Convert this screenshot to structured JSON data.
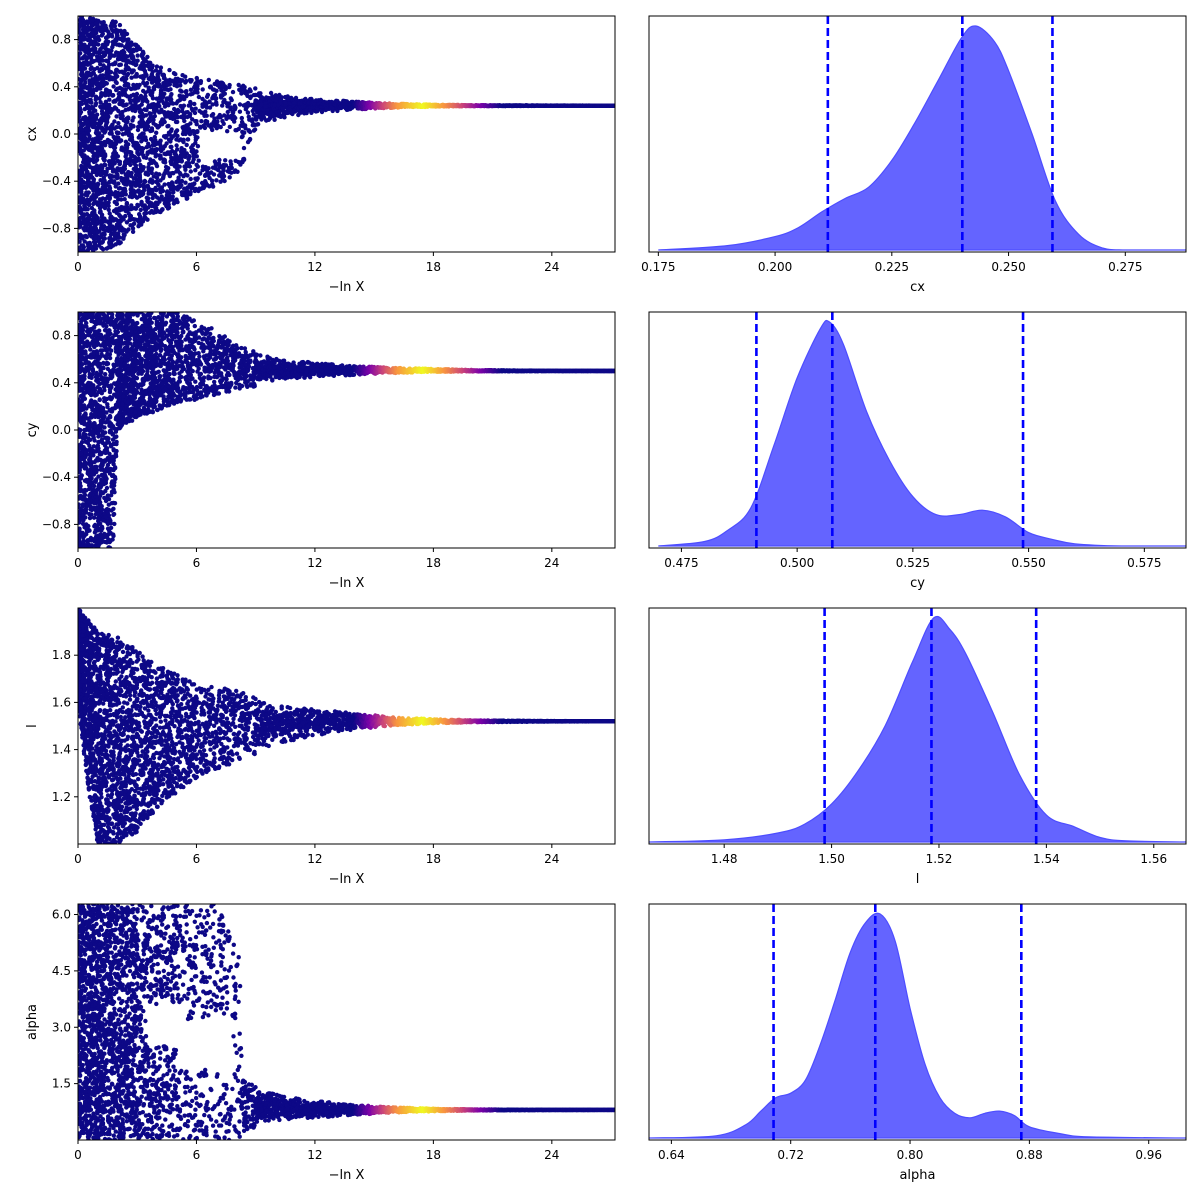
{
  "figure": {
    "colors": {
      "trace_cold": "#0d0887",
      "trace_warm": "#7e03a8",
      "trace_mid": "#cc4778",
      "trace_hot": "#f89540",
      "trace_peak": "#f0f921",
      "posterior_fill": "#6464ff",
      "posterior_edge": "#4d4dff",
      "quantile_line": "#0000ff"
    }
  },
  "chart_data": [
    {
      "type": "scatter",
      "panel": "trace-cx",
      "parameter": "cx",
      "xlabel": "−ln X",
      "ylabel": "cx",
      "xlim": [
        0,
        27.2
      ],
      "ylim": [
        -1.0,
        1.0
      ],
      "xticks": [
        0,
        6,
        12,
        18,
        24
      ],
      "xtick_labels": [
        "0",
        "6",
        "12",
        "18",
        "24"
      ],
      "yticks": [
        -0.8,
        -0.4,
        0.0,
        0.4,
        0.8
      ],
      "ytick_labels": [
        "−0.8",
        "−0.4",
        "0.0",
        "0.4",
        "0.8"
      ],
      "converged_value": 0.24,
      "envelope": [
        [
          0,
          -1.0,
          1.0
        ],
        [
          1,
          -1.0,
          0.98
        ],
        [
          2,
          -0.95,
          0.95
        ],
        [
          3,
          -0.8,
          0.75
        ],
        [
          4,
          -0.68,
          0.58
        ],
        [
          5,
          -0.6,
          0.52
        ],
        [
          6,
          -0.5,
          0.48
        ],
        [
          7,
          -0.45,
          0.45
        ],
        [
          8,
          -0.35,
          0.42
        ],
        [
          8.2,
          -0.33,
          0.42
        ],
        [
          9,
          0.05,
          0.4
        ],
        [
          10,
          0.1,
          0.36
        ],
        [
          11,
          0.14,
          0.33
        ],
        [
          12,
          0.17,
          0.31
        ],
        [
          14,
          0.2,
          0.28
        ],
        [
          16,
          0.22,
          0.26
        ],
        [
          18,
          0.23,
          0.25
        ],
        [
          20,
          0.235,
          0.245
        ],
        [
          22,
          0.237,
          0.243
        ],
        [
          24,
          0.239,
          0.241
        ],
        [
          27.2,
          0.24,
          0.24
        ]
      ],
      "gaps": [
        [
          6.1,
          8.3,
          -0.22,
          0.02
        ]
      ]
    },
    {
      "type": "area",
      "panel": "posterior-cx",
      "parameter": "cx",
      "xlabel": "cx",
      "xlim": [
        0.173,
        0.288
      ],
      "xticks": [
        0.175,
        0.2,
        0.225,
        0.25,
        0.275
      ],
      "xtick_labels": [
        "0.175",
        "0.200",
        "0.225",
        "0.250",
        "0.275"
      ],
      "quantiles": [
        0.2113,
        0.2401,
        0.2594
      ],
      "density": [
        [
          0.175,
          0.0
        ],
        [
          0.19,
          0.02
        ],
        [
          0.2,
          0.06
        ],
        [
          0.205,
          0.1
        ],
        [
          0.21,
          0.17
        ],
        [
          0.215,
          0.23
        ],
        [
          0.22,
          0.28
        ],
        [
          0.225,
          0.4
        ],
        [
          0.23,
          0.57
        ],
        [
          0.235,
          0.76
        ],
        [
          0.24,
          0.95
        ],
        [
          0.243,
          1.0
        ],
        [
          0.247,
          0.93
        ],
        [
          0.25,
          0.8
        ],
        [
          0.255,
          0.52
        ],
        [
          0.26,
          0.22
        ],
        [
          0.265,
          0.07
        ],
        [
          0.27,
          0.01
        ],
        [
          0.275,
          0.0
        ],
        [
          0.288,
          0.0
        ]
      ]
    },
    {
      "type": "scatter",
      "panel": "trace-cy",
      "parameter": "cy",
      "xlabel": "−ln X",
      "ylabel": "cy",
      "xlim": [
        0,
        27.2
      ],
      "ylim": [
        -1.0,
        1.0
      ],
      "xticks": [
        0,
        6,
        12,
        18,
        24
      ],
      "xtick_labels": [
        "0",
        "6",
        "12",
        "18",
        "24"
      ],
      "yticks": [
        -0.8,
        -0.4,
        0.0,
        0.4,
        0.8
      ],
      "ytick_labels": [
        "−0.8",
        "−0.4",
        "0.0",
        "0.4",
        "0.8"
      ],
      "converged_value": 0.5,
      "envelope": [
        [
          0,
          -1.0,
          1.0
        ],
        [
          1,
          -1.0,
          1.0
        ],
        [
          1.8,
          -1.0,
          1.0
        ],
        [
          2,
          0.0,
          1.0
        ],
        [
          3,
          0.1,
          1.0
        ],
        [
          5,
          0.22,
          1.0
        ],
        [
          7,
          0.3,
          0.85
        ],
        [
          8,
          0.34,
          0.72
        ],
        [
          10,
          0.4,
          0.62
        ],
        [
          12,
          0.44,
          0.58
        ],
        [
          14,
          0.46,
          0.55
        ],
        [
          16,
          0.48,
          0.53
        ],
        [
          18,
          0.49,
          0.52
        ],
        [
          20,
          0.495,
          0.51
        ],
        [
          22,
          0.497,
          0.505
        ],
        [
          24,
          0.499,
          0.502
        ],
        [
          27.2,
          0.5,
          0.5
        ]
      ],
      "gaps": []
    },
    {
      "type": "area",
      "panel": "posterior-cy",
      "parameter": "cy",
      "xlabel": "cy",
      "xlim": [
        0.468,
        0.584
      ],
      "xticks": [
        0.475,
        0.5,
        0.525,
        0.55,
        0.575
      ],
      "xtick_labels": [
        "0.475",
        "0.500",
        "0.525",
        "0.550",
        "0.575"
      ],
      "quantiles": [
        0.4912,
        0.5076,
        0.5488
      ],
      "density": [
        [
          0.47,
          0.0
        ],
        [
          0.48,
          0.02
        ],
        [
          0.485,
          0.07
        ],
        [
          0.49,
          0.17
        ],
        [
          0.495,
          0.45
        ],
        [
          0.5,
          0.75
        ],
        [
          0.505,
          0.97
        ],
        [
          0.507,
          1.0
        ],
        [
          0.51,
          0.9
        ],
        [
          0.515,
          0.6
        ],
        [
          0.52,
          0.38
        ],
        [
          0.525,
          0.22
        ],
        [
          0.53,
          0.14
        ],
        [
          0.535,
          0.14
        ],
        [
          0.54,
          0.16
        ],
        [
          0.545,
          0.13
        ],
        [
          0.55,
          0.06
        ],
        [
          0.555,
          0.03
        ],
        [
          0.56,
          0.01
        ],
        [
          0.57,
          0.0
        ],
        [
          0.584,
          0.0
        ]
      ]
    },
    {
      "type": "scatter",
      "panel": "trace-l",
      "parameter": "l",
      "xlabel": "−ln X",
      "ylabel": "l",
      "xlim": [
        0,
        27.2
      ],
      "ylim": [
        1.0,
        2.0
      ],
      "xticks": [
        0,
        6,
        12,
        18,
        24
      ],
      "xtick_labels": [
        "0",
        "6",
        "12",
        "18",
        "24"
      ],
      "yticks": [
        1.2,
        1.4,
        1.6,
        1.8
      ],
      "ytick_labels": [
        "1.2",
        "1.4",
        "1.6",
        "1.8"
      ],
      "converged_value": 1.52,
      "envelope": [
        [
          0,
          1.6,
          2.0
        ],
        [
          0.5,
          1.25,
          1.95
        ],
        [
          1,
          1.0,
          1.9
        ],
        [
          2,
          1.0,
          1.88
        ],
        [
          3,
          1.05,
          1.82
        ],
        [
          4,
          1.15,
          1.76
        ],
        [
          5,
          1.22,
          1.72
        ],
        [
          6,
          1.28,
          1.68
        ],
        [
          8,
          1.35,
          1.65
        ],
        [
          10,
          1.41,
          1.6
        ],
        [
          12,
          1.45,
          1.58
        ],
        [
          14,
          1.48,
          1.56
        ],
        [
          16,
          1.5,
          1.54
        ],
        [
          18,
          1.51,
          1.53
        ],
        [
          20,
          1.515,
          1.525
        ],
        [
          22,
          1.517,
          1.523
        ],
        [
          24,
          1.519,
          1.521
        ],
        [
          27.2,
          1.52,
          1.52
        ]
      ],
      "gaps": []
    },
    {
      "type": "area",
      "panel": "posterior-l",
      "parameter": "l",
      "xlabel": "l",
      "xlim": [
        1.466,
        1.566
      ],
      "xticks": [
        1.48,
        1.5,
        1.52,
        1.54,
        1.56
      ],
      "xtick_labels": [
        "1.48",
        "1.50",
        "1.52",
        "1.54",
        "1.56"
      ],
      "quantiles": [
        1.4987,
        1.5186,
        1.5381
      ],
      "density": [
        [
          1.466,
          0.0
        ],
        [
          1.48,
          0.01
        ],
        [
          1.49,
          0.04
        ],
        [
          1.495,
          0.08
        ],
        [
          1.5,
          0.17
        ],
        [
          1.505,
          0.32
        ],
        [
          1.51,
          0.52
        ],
        [
          1.515,
          0.8
        ],
        [
          1.519,
          1.0
        ],
        [
          1.522,
          0.95
        ],
        [
          1.525,
          0.84
        ],
        [
          1.53,
          0.58
        ],
        [
          1.535,
          0.3
        ],
        [
          1.54,
          0.12
        ],
        [
          1.545,
          0.07
        ],
        [
          1.55,
          0.02
        ],
        [
          1.555,
          0.005
        ],
        [
          1.566,
          0.0
        ]
      ]
    },
    {
      "type": "scatter",
      "panel": "trace-alpha",
      "parameter": "alpha",
      "xlabel": "−ln X",
      "ylabel": "alpha",
      "xlim": [
        0,
        27.2
      ],
      "ylim": [
        0.0,
        6.28
      ],
      "xticks": [
        0,
        6,
        12,
        18,
        24
      ],
      "xtick_labels": [
        "0",
        "6",
        "12",
        "18",
        "24"
      ],
      "yticks": [
        1.5,
        3.0,
        4.5,
        6.0
      ],
      "ytick_labels": [
        "1.5",
        "3.0",
        "4.5",
        "6.0"
      ],
      "converged_value": 0.8,
      "envelope": [
        [
          0,
          0.0,
          6.28
        ],
        [
          6,
          0.0,
          6.28
        ],
        [
          7,
          0.0,
          6.28
        ],
        [
          7.5,
          0.0,
          5.8
        ],
        [
          8.2,
          0.0,
          4.8
        ],
        [
          8.3,
          0.2,
          1.6
        ],
        [
          9,
          0.35,
          1.45
        ],
        [
          10,
          0.45,
          1.3
        ],
        [
          12,
          0.55,
          1.1
        ],
        [
          14,
          0.65,
          0.95
        ],
        [
          16,
          0.72,
          0.88
        ],
        [
          18,
          0.76,
          0.84
        ],
        [
          20,
          0.78,
          0.82
        ],
        [
          22,
          0.79,
          0.81
        ],
        [
          24,
          0.798,
          0.802
        ],
        [
          27.2,
          0.8,
          0.8
        ]
      ],
      "gaps": [
        [
          3.5,
          5.5,
          2.5,
          3.6
        ],
        [
          5.0,
          7.8,
          1.9,
          3.2
        ]
      ]
    },
    {
      "type": "area",
      "panel": "posterior-alpha",
      "parameter": "alpha",
      "xlabel": "alpha",
      "xlim": [
        0.625,
        0.985
      ],
      "xticks": [
        0.64,
        0.72,
        0.8,
        0.88,
        0.96
      ],
      "xtick_labels": [
        "0.64",
        "0.72",
        "0.80",
        "0.88",
        "0.96"
      ],
      "quantiles": [
        0.7085,
        0.7767,
        0.8746
      ],
      "density": [
        [
          0.625,
          0.0
        ],
        [
          0.67,
          0.01
        ],
        [
          0.69,
          0.06
        ],
        [
          0.7,
          0.12
        ],
        [
          0.71,
          0.18
        ],
        [
          0.72,
          0.2
        ],
        [
          0.73,
          0.26
        ],
        [
          0.74,
          0.42
        ],
        [
          0.75,
          0.62
        ],
        [
          0.76,
          0.83
        ],
        [
          0.77,
          0.96
        ],
        [
          0.78,
          1.0
        ],
        [
          0.79,
          0.88
        ],
        [
          0.8,
          0.58
        ],
        [
          0.81,
          0.33
        ],
        [
          0.82,
          0.18
        ],
        [
          0.83,
          0.11
        ],
        [
          0.84,
          0.09
        ],
        [
          0.85,
          0.11
        ],
        [
          0.86,
          0.12
        ],
        [
          0.87,
          0.1
        ],
        [
          0.88,
          0.05
        ],
        [
          0.9,
          0.02
        ],
        [
          0.92,
          0.005
        ],
        [
          0.985,
          0.0
        ]
      ]
    }
  ]
}
